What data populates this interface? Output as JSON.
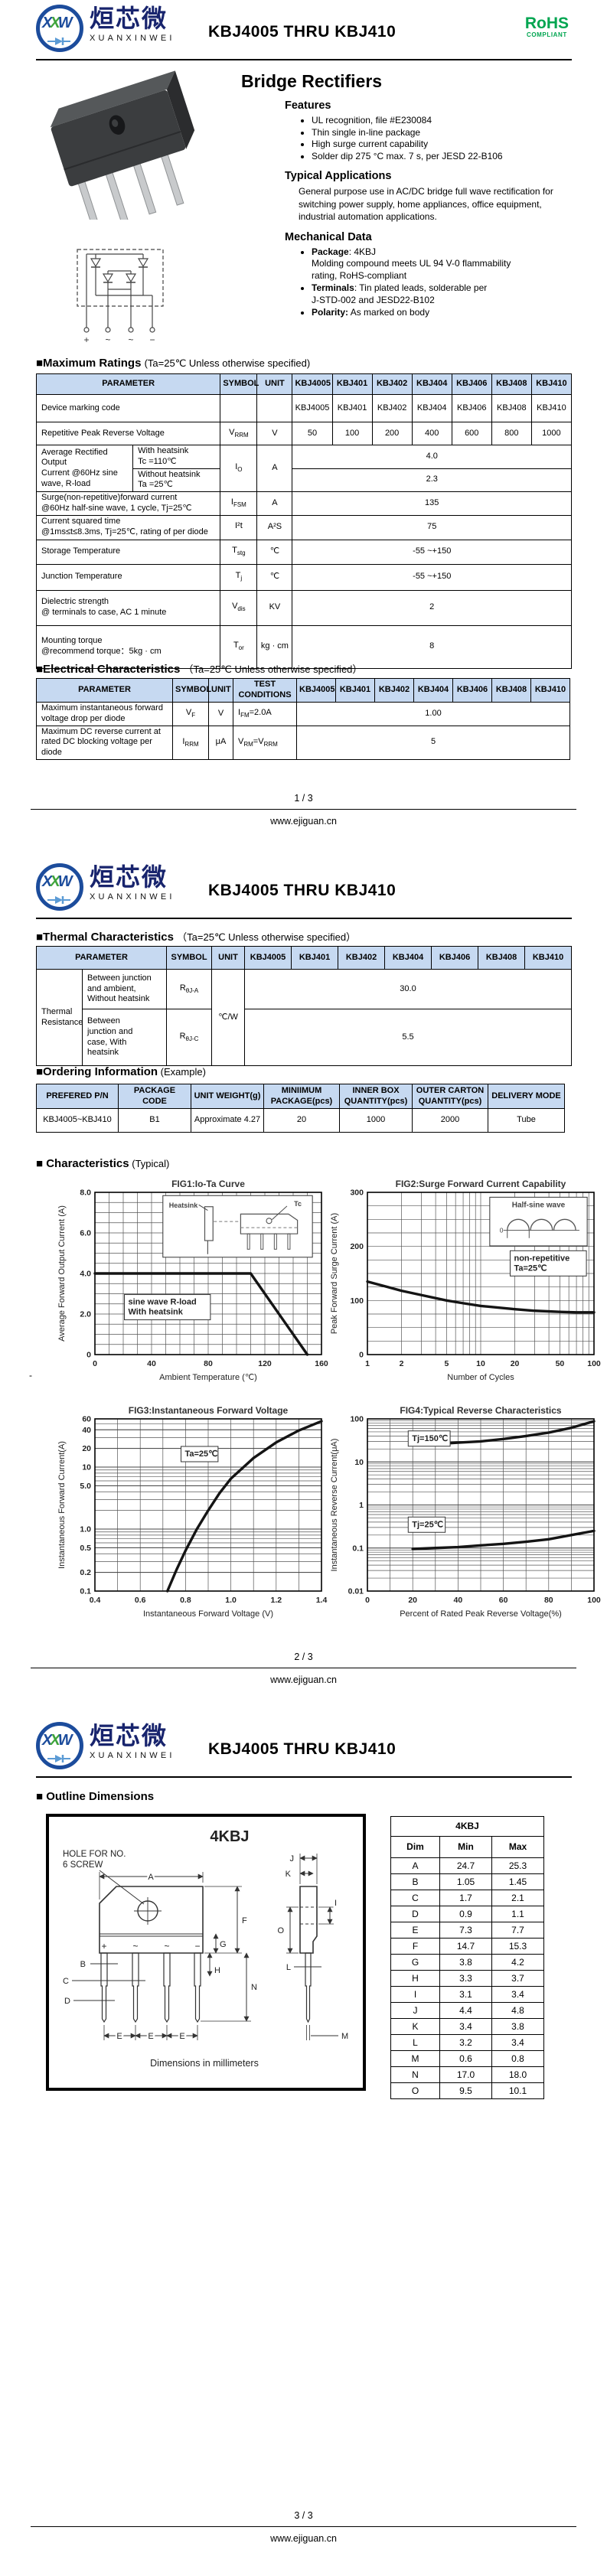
{
  "brand": {
    "logo_l1": "X",
    "logo_l2": "X",
    "logo_l3": "W",
    "name_cn": "烜芯微",
    "name_en": "XUANXINWEI",
    "rohs1": "RoHS",
    "rohs2": "COMPLIANT",
    "doc_title": "KBJ4005 THRU KBJ410",
    "website": "www.ejiguan.cn"
  },
  "parts": [
    "KBJ4005",
    "KBJ401",
    "KBJ402",
    "KBJ404",
    "KBJ406",
    "KBJ408",
    "KBJ410"
  ],
  "page1": {
    "page_num": "1 / 3",
    "product_title": "Bridge Rectifiers",
    "features_heading": "Features",
    "features": [
      "UL recognition, file #E230084",
      "Thin single in-line package",
      "High surge current capability",
      "Solder dip 275 °C max. 7 s, per JESD 22-B106"
    ],
    "applications_heading": "Typical  Applications",
    "applications_text": "General purpose use in AC/DC bridge full wave rectification for switching power supply, home appliances, office equipment, industrial automation applications.",
    "mechanical_heading": "Mechanical Data",
    "mech_items": {
      "i1": {
        "bold": "Package",
        "rest": ": 4KBJ",
        "cont": [
          "Molding compound meets UL 94 V-0 flammability",
          "rating, RoHS-compliant"
        ]
      },
      "i2": {
        "bold": "Terminals",
        "rest": ": Tin plated leads, solderable per",
        "cont": [
          "J-STD-002 and JESD22-B102"
        ]
      },
      "i3": {
        "bold": "Polarity:",
        "rest": " As marked on body",
        "cont": []
      }
    },
    "circuit_terminals": [
      "+",
      "~",
      "~",
      "−"
    ],
    "max_ratings": {
      "heading": "■Maximum Ratings",
      "cond": "(Ta=25℃ Unless otherwise specified)",
      "h_param": "PARAMETER",
      "h_symbol": "SYMBOL",
      "h_unit": "UNIT",
      "marking_label": "Device marking code",
      "vrrm": {
        "param": "Repetitive Peak Reverse Voltage",
        "b": "V",
        "s": "RRM",
        "unit": "V",
        "values": [
          "50",
          "100",
          "200",
          "400",
          "600",
          "800",
          "1000"
        ]
      },
      "io": {
        "param": "Average Rectified Output\nCurrent @60Hz sine\nwave, R-load",
        "with_l": "With heatsink\nTc =110℃",
        "with_v": "4.0",
        "without_l": "Without heatsink\nTa =25℃",
        "without_v": "2.3",
        "b": "I",
        "s": "O",
        "unit": "A"
      },
      "ifsm": {
        "param": "Surge(non-repetitive)forward current\n@60Hz half-sine wave, 1 cycle, Tj=25℃",
        "b": "I",
        "s": "FSM",
        "unit": "A",
        "value": "135"
      },
      "i2t": {
        "param": "Current squared time\n@1ms≤t≤8.3ms, Tj=25℃, rating of per diode",
        "b": "I²t",
        "s": "",
        "unit": "A²S",
        "value": "75"
      },
      "tstg": {
        "param": "Storage Temperature",
        "b": "T",
        "s": "stg",
        "unit": "℃",
        "value": "-55 ~+150"
      },
      "tj": {
        "param": "Junction Temperature",
        "b": "T",
        "s": "j",
        "unit": "℃",
        "value": "-55 ~+150"
      },
      "vdis": {
        "param": "Dielectric strength\n@ terminals to case, AC 1 minute",
        "b": "V",
        "s": "dis",
        "unit": "KV",
        "value": "2"
      },
      "tor": {
        "param": "Mounting torque\n@recommend torque：5kg · cm",
        "b": "T",
        "s": "or",
        "unit": "kg · cm",
        "value": "8"
      }
    },
    "electrical": {
      "heading": "■Electrical Characteristics",
      "cond": "（Ta=25℃ Unless otherwise specified）",
      "h_param": "PARAMETER",
      "h_symbol": "SYMBOL",
      "h_unit": "UNIT",
      "h_test": "TEST\nCONDITIONS",
      "vf": {
        "param": "Maximum instantaneous forward\nvoltage drop per diode",
        "b": "V",
        "s": "F",
        "unit": "V",
        "t1": "I",
        "t1s": "FM",
        "t2": "=2.0A",
        "value": "1.00"
      },
      "irrm": {
        "param": "Maximum DC reverse current at\nrated DC blocking voltage per diode",
        "b": "I",
        "s": "RRM",
        "unit": "μA",
        "t1": "V",
        "t1s": "RM",
        "t2": "=V",
        "t2s": "RRM",
        "value": "5"
      }
    }
  },
  "page2": {
    "page_num": "2 / 3",
    "stray": "-",
    "thermal": {
      "heading": "■Thermal Characteristics",
      "cond": "（Ta=25℃ Unless otherwise specified）",
      "h_param": "PARAMETER",
      "h_symbol": "SYMBOL",
      "h_unit": "UNIT",
      "group": "Thermal\nResistance",
      "r1": {
        "desc": "Between junction\nand ambient,\nWithout heatsink",
        "b": "R",
        "s": "θJ-A",
        "value": "30.0"
      },
      "r2": {
        "desc": "Between\njunction and\ncase, With\nheatsink",
        "b": "R",
        "s": "θJ-C",
        "value": "5.5"
      },
      "unit": "℃/W"
    },
    "ordering": {
      "heading": "■Ordering Information",
      "suffix": " (Example)",
      "headers": [
        "PREFERED P/N",
        "PACKAGE CODE",
        "UNIT WEIGHT(g)",
        "MINIIMUM\nPACKAGE(pcs)",
        "INNER BOX\nQUANTITY(pcs)",
        "OUTER CARTON\nQUANTITY(pcs)",
        "DELIVERY MODE"
      ],
      "row": [
        "KBJ4005~KBJ410",
        "B1",
        "Approximate 4.27",
        "20",
        "1000",
        "2000",
        "Tube"
      ]
    },
    "char_heading": "■ Characteristics",
    "char_suffix": " (Typical)"
  },
  "chart_data": [
    {
      "type": "line",
      "title": "FIG1:Io-Ta Curve",
      "xlabel": "Ambient Temperature (℃)",
      "ylabel": "Average Forward Output Current (A)",
      "x": {
        "scale": "linear",
        "min": 0,
        "max": 160,
        "ticks": [
          0,
          40,
          80,
          120,
          160
        ],
        "tick_labels": [
          "0",
          "40",
          "80",
          "120",
          "160"
        ],
        "minor": 10
      },
      "y": {
        "scale": "linear",
        "min": 0,
        "max": 8,
        "ticks": [
          0,
          2,
          4,
          6,
          8
        ],
        "tick_labels": [
          "0",
          "2.0",
          "4.0",
          "6.0",
          "8.0"
        ],
        "minor": 0.5
      },
      "series": [
        {
          "name": "Io",
          "points": [
            [
              0,
              4
            ],
            [
              110,
              4
            ],
            [
              150,
              0
            ]
          ]
        }
      ],
      "annotations": [
        {
          "lines": [
            "sine wave R-load",
            "With heatsink"
          ],
          "fx": 0.13,
          "fy": 0.63
        }
      ],
      "inset": {
        "kind": "heatsink",
        "labels": [
          "Heatsink",
          "Tc"
        ],
        "fx": 0.3,
        "fy": 0.02,
        "fw": 0.66,
        "fh": 0.38
      }
    },
    {
      "type": "line",
      "title": "FIG2:Surge Forward Current Capability",
      "xlabel": "Number of Cycles",
      "ylabel": "Peak Forward Surge Current (A)",
      "x": {
        "scale": "log",
        "min": 1,
        "max": 100,
        "ticks": [
          1,
          2,
          5,
          10,
          20,
          50,
          100
        ],
        "tick_labels": [
          "1",
          "2",
          "5",
          "10",
          "20",
          "50",
          "100"
        ]
      },
      "y": {
        "scale": "linear",
        "min": 0,
        "max": 300,
        "ticks": [
          0,
          100,
          200,
          300
        ],
        "tick_labels": [
          "0",
          "100",
          "200",
          "300"
        ],
        "minor": 25
      },
      "series": [
        {
          "name": "IFSM",
          "points": [
            [
              1,
              135
            ],
            [
              2,
              118
            ],
            [
              3,
              110
            ],
            [
              5,
              100
            ],
            [
              7,
              95
            ],
            [
              10,
              90
            ],
            [
              20,
              84
            ],
            [
              30,
              81
            ],
            [
              50,
              79
            ],
            [
              70,
              78
            ],
            [
              100,
              78
            ]
          ]
        }
      ],
      "annotations": [
        {
          "lines": [
            "non-repetitive",
            "Ta=25℃"
          ],
          "fx": 0.63,
          "fy": 0.36
        }
      ],
      "inset": {
        "kind": "halfsine",
        "labels": [
          "Half-sine wave",
          "0"
        ],
        "fx": 0.54,
        "fy": 0.03,
        "fw": 0.43,
        "fh": 0.3
      }
    },
    {
      "type": "line",
      "title": "FIG3:Instantaneous Forward Voltage",
      "xlabel": "Instantaneous Forward Voltage (V)",
      "ylabel": "Instantaneous Forward Current(A)",
      "x": {
        "scale": "linear",
        "min": 0.4,
        "max": 1.4,
        "ticks": [
          0.4,
          0.6,
          0.8,
          1.0,
          1.2,
          1.4
        ],
        "tick_labels": [
          "0.4",
          "0.6",
          "0.8",
          "1.0",
          "1.2",
          "1.4"
        ],
        "minor": 0.1
      },
      "y": {
        "scale": "log",
        "min": 0.1,
        "max": 60,
        "ticks": [
          0.1,
          0.2,
          0.5,
          1.0,
          5.0,
          10,
          20,
          40,
          60
        ],
        "tick_labels": [
          "0.1",
          "0.2",
          "0.5",
          "1.0",
          "5.0",
          "10",
          "20",
          "40",
          "60"
        ]
      },
      "series": [
        {
          "name": "VF",
          "points": [
            [
              0.72,
              0.1
            ],
            [
              0.76,
              0.22
            ],
            [
              0.8,
              0.45
            ],
            [
              0.85,
              1.0
            ],
            [
              0.9,
              2.0
            ],
            [
              0.95,
              3.8
            ],
            [
              1.0,
              6.5
            ],
            [
              1.1,
              14
            ],
            [
              1.2,
              25
            ],
            [
              1.3,
              39
            ],
            [
              1.4,
              55
            ]
          ]
        }
      ],
      "annotations": [
        {
          "lines": [
            "Ta=25℃"
          ],
          "fx": 0.38,
          "fy": 0.16
        }
      ]
    },
    {
      "type": "line",
      "title": "FIG4:Typical Reverse Characteristics",
      "xlabel": "Percent of Rated Peak Reverse Voltage(%)",
      "ylabel": "Instantaneous Reverse Current(μA)",
      "x": {
        "scale": "linear",
        "min": 0,
        "max": 100,
        "ticks": [
          0,
          20,
          40,
          60,
          80,
          100
        ],
        "tick_labels": [
          "0",
          "20",
          "40",
          "60",
          "80",
          "100"
        ],
        "minor": 10
      },
      "y": {
        "scale": "log",
        "min": 0.01,
        "max": 100,
        "ticks": [
          0.01,
          0.1,
          1,
          10,
          100
        ],
        "tick_labels": [
          "0.01",
          "0.1",
          "1",
          "10",
          "100"
        ]
      },
      "series": [
        {
          "name": "Tj=150℃",
          "points": [
            [
              20,
              25
            ],
            [
              30,
              26
            ],
            [
              40,
              28
            ],
            [
              50,
              30
            ],
            [
              60,
              34
            ],
            [
              70,
              40
            ],
            [
              80,
              48
            ],
            [
              90,
              62
            ],
            [
              100,
              88
            ]
          ]
        },
        {
          "name": "Tj=25℃",
          "points": [
            [
              20,
              0.095
            ],
            [
              30,
              0.1
            ],
            [
              40,
              0.105
            ],
            [
              50,
              0.115
            ],
            [
              60,
              0.125
            ],
            [
              70,
              0.14
            ],
            [
              80,
              0.16
            ],
            [
              90,
              0.2
            ],
            [
              100,
              0.25
            ]
          ]
        }
      ],
      "annotations": [
        {
          "lines": [
            "Tj=150℃"
          ],
          "fx": 0.18,
          "fy": 0.07
        },
        {
          "lines": [
            "Tj=25℃"
          ],
          "fx": 0.18,
          "fy": 0.57
        }
      ]
    }
  ],
  "page3": {
    "page_num": "3 / 3",
    "heading": "■ Outline Dimensions",
    "pkg_label": "4KBJ",
    "hole_note_l1": "HOLE FOR NO.",
    "hole_note_l2": "6 SCREW",
    "marks": [
      "+",
      "~",
      "~",
      "−"
    ],
    "caption": "Dimensions in millimeters",
    "dim_table": {
      "title": "4KBJ",
      "headers": [
        "Dim",
        "Min",
        "Max"
      ],
      "rows": [
        [
          "A",
          "24.7",
          "25.3"
        ],
        [
          "B",
          "1.05",
          "1.45"
        ],
        [
          "C",
          "1.7",
          "2.1"
        ],
        [
          "D",
          "0.9",
          "1.1"
        ],
        [
          "E",
          "7.3",
          "7.7"
        ],
        [
          "F",
          "14.7",
          "15.3"
        ],
        [
          "G",
          "3.8",
          "4.2"
        ],
        [
          "H",
          "3.3",
          "3.7"
        ],
        [
          "I",
          "3.1",
          "3.4"
        ],
        [
          "J",
          "4.4",
          "4.8"
        ],
        [
          "K",
          "3.4",
          "3.8"
        ],
        [
          "L",
          "3.2",
          "3.4"
        ],
        [
          "M",
          "0.6",
          "0.8"
        ],
        [
          "N",
          "17.0",
          "18.0"
        ],
        [
          "O",
          "9.5",
          "10.1"
        ]
      ]
    }
  }
}
